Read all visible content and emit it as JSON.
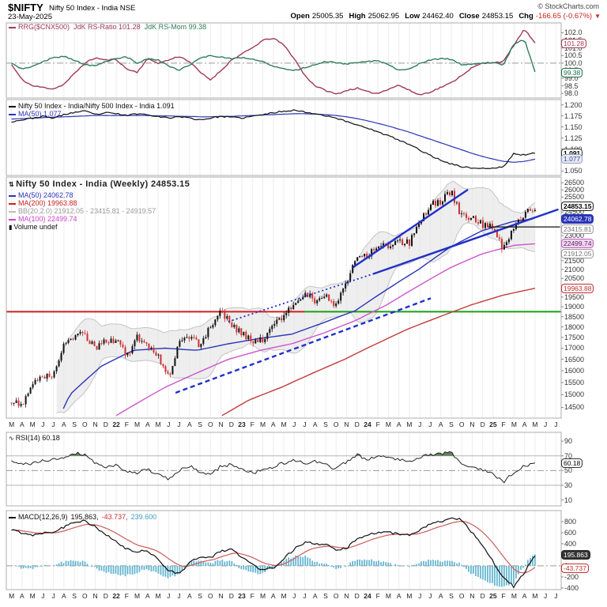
{
  "header": {
    "symbol": "$NIFTY",
    "title": "Nifty 50 Index - India NSE",
    "date": "23-May-2025",
    "credit": "© StockCharts.com",
    "quote": [
      {
        "label": "Open",
        "value": "25005.35"
      },
      {
        "label": "High",
        "value": "25062.95"
      },
      {
        "label": "Low",
        "value": "24462.40"
      },
      {
        "label": "Close",
        "value": "24853.15"
      },
      {
        "label": "Chg",
        "value": "-166.65 (-0.67%)",
        "down": true
      }
    ],
    "down_arrow": "▼"
  },
  "panels": {
    "rrg": {
      "legend": {
        "name": "RRG($CNX500)",
        "ratio_label": "JdK RS-Ratio 101.28",
        "mom_label": "JdK RS-Mom 99.38"
      },
      "ticks": [
        "102.0",
        "101.5",
        "101.0",
        "100.5",
        "100.0",
        "99.5",
        "99.0",
        "98.5",
        "98.0"
      ],
      "badges": [
        {
          "value": 101.28,
          "label": "101.28",
          "fg": "#a13a54",
          "border": "#a13a54",
          "bg": "#ffffff",
          "bold": false
        },
        {
          "value": 99.38,
          "label": "99.38",
          "fg": "#1e6b4a",
          "border": "#1e6b4a",
          "bg": "#ffffff",
          "bold": false
        }
      ]
    },
    "ratio": {
      "legend": {
        "line1": "Nifty 50 Index - India/Nifty 500 Index - India 1.091",
        "line2": "MA(50) 1.077"
      },
      "ticks": [
        "1.200",
        "1.175",
        "1.150",
        "1.125",
        "1.100",
        "1.050"
      ],
      "badges": [
        {
          "value": 1.091,
          "label": "1.091",
          "fg": "#000000",
          "border": "#333333",
          "bg": "#ffffff",
          "bold": true
        },
        {
          "value": 1.077,
          "label": "1.077",
          "fg": "#3a4296",
          "border": "#9aa0c0",
          "bg": "#e8eaf2",
          "bold": false
        }
      ]
    },
    "price": {
      "legend": {
        "title": "Nifty 50 Index - India (Weekly) 24853.15",
        "ma50": "MA(50) 24062.78",
        "ma200": "MA(200) 19963.88",
        "bb": "BB(20,2.0) 21912.05 - 23415.81 - 24919.57",
        "ma100": "MA(100) 22499.74",
        "vol": "Volume undef"
      },
      "badges": [
        {
          "value": 24853.15,
          "label": "24853.15",
          "fg": "#000000",
          "border": "#222222",
          "bg": "#ffffff",
          "bold": true
        },
        {
          "value": 24062.78,
          "label": "24062.78",
          "fg": "#ffffff",
          "border": "#2a35b8",
          "bg": "#2a35b8",
          "bold": false
        },
        {
          "value": 23415.81,
          "label": "23415.81",
          "fg": "#777777",
          "border": "#999999",
          "bg": "#ffffff",
          "bold": false
        },
        {
          "value": 22499.74,
          "label": "22499.74",
          "fg": "#5c2a5c",
          "border": "#c060c0",
          "bg": "#f3d5f3",
          "bold": false
        },
        {
          "value": 21912.05,
          "label": "21912.05",
          "fg": "#777777",
          "border": "#999999",
          "bg": "#ffffff",
          "bold": false
        },
        {
          "value": 19963.88,
          "label": "19963.88",
          "fg": "#c03030",
          "border": "#c03030",
          "bg": "#ffffff",
          "bold": false
        }
      ]
    },
    "rsi": {
      "legend": {
        "line1": "RSI(14) 60.18"
      },
      "ticks": [
        "90",
        "70",
        "50",
        "30",
        "10"
      ],
      "badges": [
        {
          "value": 60.18,
          "label": "60.18",
          "fg": "#000000",
          "border": "#333333",
          "bg": "#ffffff",
          "bold": false
        }
      ]
    },
    "macd": {
      "legend": {
        "name": "MACD(12,26,9)",
        "v1": "195.863,",
        "v2": "-43.737,",
        "v3": "239.600"
      },
      "ticks": [
        "800",
        "600",
        "400",
        "200",
        "0",
        "-200",
        "-400"
      ],
      "badges": [
        {
          "value": 195.863,
          "label": "195.863",
          "fg": "#ffffff",
          "border": "#222222",
          "bg": "#333333",
          "bold": false
        },
        {
          "value": -43.737,
          "label": "-43.737",
          "fg": "#c03030",
          "border": "#c03030",
          "bg": "#ffffff",
          "bold": false
        }
      ]
    }
  },
  "x_axis": {
    "labels": [
      "M",
      "A",
      "M",
      "J",
      "J",
      "A",
      "S",
      "O",
      "N",
      "D",
      "22",
      "F",
      "M",
      "A",
      "M",
      "J",
      "J",
      "A",
      "S",
      "O",
      "N",
      "D",
      "23",
      "F",
      "M",
      "A",
      "M",
      "J",
      "J",
      "A",
      "S",
      "O",
      "N",
      "D",
      "24",
      "F",
      "M",
      "A",
      "M",
      "J",
      "J",
      "A",
      "S",
      "O",
      "N",
      "D",
      "25",
      "F",
      "M",
      "A",
      "M",
      "J",
      "J"
    ],
    "year_indices": [
      10,
      22,
      34,
      46
    ]
  },
  "chart_data": [
    {
      "type": "line",
      "title": "RRG($CNX500)",
      "ylim": [
        97.7,
        102.65
      ],
      "dashed_level": 100,
      "x_start": "Mar-2021",
      "x_step": "month",
      "series": [
        {
          "name": "JdK RS-Ratio",
          "color": "#a13a54",
          "last": 101.28,
          "values": [
            99.9,
            98.9,
            98.5,
            98.4,
            98.3,
            98.6,
            99.3,
            100.0,
            100.35,
            100.2,
            100.25,
            99.6,
            99.4,
            100.3,
            100.0,
            100.2,
            100.45,
            100.1,
            99.4,
            98.9,
            99.5,
            100.2,
            100.6,
            101.0,
            101.5,
            101.65,
            101.2,
            100.3,
            99.2,
            98.5,
            98.2,
            97.95,
            98.2,
            98.35,
            98.1,
            98.0,
            98.3,
            98.55,
            98.2,
            97.9,
            98.1,
            98.4,
            98.7,
            99.2,
            99.7,
            100.0,
            100.05,
            100.1,
            101.2,
            102.25,
            101.28
          ]
        },
        {
          "name": "JdK RS-Mom",
          "color": "#2e7d5b",
          "last": 99.38,
          "values": [
            100.0,
            99.6,
            99.8,
            100.1,
            100.35,
            100.45,
            100.2,
            99.9,
            99.8,
            100.1,
            100.3,
            100.4,
            100.0,
            100.3,
            100.2,
            99.8,
            99.5,
            99.9,
            100.3,
            100.5,
            100.4,
            100.3,
            100.35,
            100.3,
            100.1,
            99.8,
            99.6,
            99.5,
            99.7,
            99.9,
            100.1,
            100.05,
            99.95,
            100.0,
            100.1,
            100.15,
            99.9,
            99.5,
            99.6,
            100.0,
            100.2,
            100.3,
            100.25,
            99.9,
            99.95,
            100.0,
            100.0,
            99.9,
            101.3,
            101.55,
            99.38
          ]
        }
      ]
    },
    {
      "type": "line",
      "title": "Nifty 50 Index - India / Nifty 500 Index - India",
      "ylim": [
        1.04,
        1.212
      ],
      "series": [
        {
          "name": "Ratio",
          "color": "#111111",
          "last": 1.091,
          "values": [
            1.162,
            1.166,
            1.17,
            1.174,
            1.17,
            1.178,
            1.183,
            1.186,
            1.178,
            1.182,
            1.18,
            1.176,
            1.18,
            1.178,
            1.174,
            1.17,
            1.174,
            1.17,
            1.166,
            1.17,
            1.174,
            1.172,
            1.17,
            1.174,
            1.178,
            1.182,
            1.186,
            1.188,
            1.184,
            1.18,
            1.176,
            1.17,
            1.162,
            1.155,
            1.148,
            1.138,
            1.13,
            1.12,
            1.11,
            1.098,
            1.085,
            1.075,
            1.066,
            1.06,
            1.057,
            1.056,
            1.056,
            1.06,
            1.09,
            1.086,
            1.091
          ]
        },
        {
          "name": "MA(50)",
          "color": "#2a35b8",
          "last": 1.077,
          "values": [
            1.168,
            1.169,
            1.17,
            1.171,
            1.172,
            1.173,
            1.174,
            1.175,
            1.176,
            1.176,
            1.176,
            1.176,
            1.176,
            1.176,
            1.175,
            1.175,
            1.174,
            1.174,
            1.173,
            1.173,
            1.174,
            1.174,
            1.175,
            1.176,
            1.177,
            1.178,
            1.179,
            1.18,
            1.18,
            1.179,
            1.178,
            1.176,
            1.173,
            1.169,
            1.164,
            1.158,
            1.152,
            1.145,
            1.138,
            1.13,
            1.122,
            1.114,
            1.106,
            1.098,
            1.09,
            1.083,
            1.077,
            1.072,
            1.07,
            1.072,
            1.077
          ]
        }
      ]
    },
    {
      "type": "candlestick",
      "title": "Nifty 50 Index - India (Weekly)",
      "log_scale": true,
      "ylim": [
        14090,
        26910
      ],
      "yticks": {
        "min": 14500,
        "max": 26500,
        "step": 500
      },
      "last": 24853.15,
      "up_color": "#111111",
      "down_color": "#cc3333",
      "monthly_closes": [
        14690,
        14631,
        15583,
        15722,
        15763,
        17132,
        17618,
        17672,
        16983,
        17354,
        17340,
        16658,
        17465,
        17103,
        16585,
        15780,
        17158,
        17559,
        17094,
        18012,
        18758,
        18105,
        17662,
        17304,
        17360,
        18065,
        18534,
        19189,
        19754,
        19253,
        19638,
        19080,
        20268,
        21731,
        21726,
        22339,
        22327,
        22605,
        22531,
        24011,
        24951,
        25236,
        25811,
        24205,
        24131,
        23645,
        23482,
        22125,
        23519,
        24334,
        24853
      ],
      "overlays": [
        {
          "name": "MA(50)",
          "color": "#2a35b8",
          "last": 24062.78,
          "anchors": [
            [
              0.1,
              14090
            ],
            [
              0.12,
              15000
            ],
            [
              0.18,
              16200
            ],
            [
              0.24,
              16900
            ],
            [
              0.3,
              17000
            ],
            [
              0.36,
              16900
            ],
            [
              0.42,
              17200
            ],
            [
              0.48,
              17450
            ],
            [
              0.54,
              17650
            ],
            [
              0.6,
              18200
            ],
            [
              0.66,
              18800
            ],
            [
              0.72,
              19900
            ],
            [
              0.78,
              21000
            ],
            [
              0.84,
              22300
            ],
            [
              0.9,
              23300
            ],
            [
              0.96,
              23900
            ],
            [
              1.0,
              24063
            ]
          ]
        },
        {
          "name": "MA(100)",
          "color": "#cc55cc",
          "last": 22499.74,
          "anchors": [
            [
              0.2,
              14090
            ],
            [
              0.3,
              15300
            ],
            [
              0.36,
              15900
            ],
            [
              0.42,
              16500
            ],
            [
              0.48,
              16900
            ],
            [
              0.54,
              17200
            ],
            [
              0.6,
              17700
            ],
            [
              0.66,
              18300
            ],
            [
              0.72,
              19100
            ],
            [
              0.78,
              20100
            ],
            [
              0.84,
              21100
            ],
            [
              0.9,
              21900
            ],
            [
              0.96,
              22400
            ],
            [
              1.0,
              22500
            ]
          ]
        },
        {
          "name": "MA(200)",
          "color": "#c23b3b",
          "last": 19963.88,
          "anchors": [
            [
              0.4,
              14090
            ],
            [
              0.46,
              14800
            ],
            [
              0.52,
              15300
            ],
            [
              0.58,
              15900
            ],
            [
              0.64,
              16500
            ],
            [
              0.7,
              17200
            ],
            [
              0.76,
              17900
            ],
            [
              0.82,
              18500
            ],
            [
              0.88,
              19100
            ],
            [
              0.94,
              19600
            ],
            [
              1.0,
              19964
            ]
          ]
        }
      ],
      "bb": {
        "period": 20,
        "mult": 2.0,
        "fill": "#e2e2e2",
        "edge": "#c4c4c4",
        "upper": 24919.57,
        "middle": 23415.81,
        "lower": 21912.05
      },
      "support_line": {
        "value": 18750,
        "split_frac": 0.537,
        "left_color": "#cc2222",
        "right_color": "#1a9e1a"
      },
      "annotations": [
        {
          "style": "solid",
          "width": 2.4,
          "color": "#2230c8",
          "from": [
            0.625,
            0.374
          ],
          "to": [
            0.832,
            0.052
          ]
        },
        {
          "style": "solid",
          "width": 2.4,
          "color": "#2230c8",
          "from": [
            0.661,
            0.402
          ],
          "to": [
            0.995,
            0.134
          ]
        },
        {
          "style": "dotted",
          "width": 1.8,
          "color": "#2230c8",
          "from": [
            0.4,
            0.6
          ],
          "to": [
            0.661,
            0.402
          ]
        },
        {
          "style": "dashed",
          "width": 2.4,
          "color": "#2230c8",
          "from": [
            0.305,
            0.895
          ],
          "to": [
            0.765,
            0.503
          ]
        },
        {
          "style": "solid",
          "width": 1.2,
          "color": "#111111",
          "from": [
            0.868,
            0.207
          ],
          "to": [
            0.998,
            0.207
          ]
        }
      ]
    },
    {
      "type": "line",
      "title": "RSI(14)",
      "ylim": [
        2,
        102
      ],
      "overbought": 70,
      "oversold": 30,
      "mid": 50,
      "fill_above": 70,
      "fill_color": "#5d7a55",
      "last": 60.18,
      "series": [
        {
          "name": "RSI",
          "color": "#222222",
          "values": [
            62,
            58,
            60,
            63,
            65,
            68,
            74,
            72,
            60,
            55,
            57,
            50,
            47,
            52,
            44,
            38,
            50,
            56,
            48,
            44,
            56,
            58,
            52,
            47,
            50,
            55,
            60,
            64,
            60,
            62,
            58,
            52,
            62,
            71,
            66,
            70,
            67,
            66,
            63,
            68,
            72,
            73,
            75,
            58,
            55,
            50,
            45,
            34,
            48,
            56,
            60.18
          ]
        }
      ]
    },
    {
      "type": "macd",
      "title": "MACD(12,26,9)",
      "ylim": [
        -430,
        1000
      ],
      "zero_dashed": true,
      "hist_color": "#5fb4cf",
      "signal_color": "#d05b5b",
      "macd_color": "#111111",
      "last": [
        195.863,
        -43.737,
        239.6
      ],
      "signal_ema": 0.13,
      "series": [
        {
          "name": "MACD",
          "color": "#111111",
          "values": [
            650,
            600,
            560,
            600,
            620,
            700,
            800,
            820,
            700,
            560,
            430,
            300,
            250,
            280,
            120,
            -80,
            -150,
            60,
            170,
            140,
            270,
            300,
            160,
            20,
            -70,
            -40,
            140,
            300,
            420,
            400,
            380,
            290,
            310,
            500,
            560,
            600,
            600,
            580,
            560,
            640,
            750,
            800,
            870,
            840,
            600,
            380,
            80,
            -220,
            -380,
            -120,
            195.863
          ]
        }
      ]
    }
  ]
}
